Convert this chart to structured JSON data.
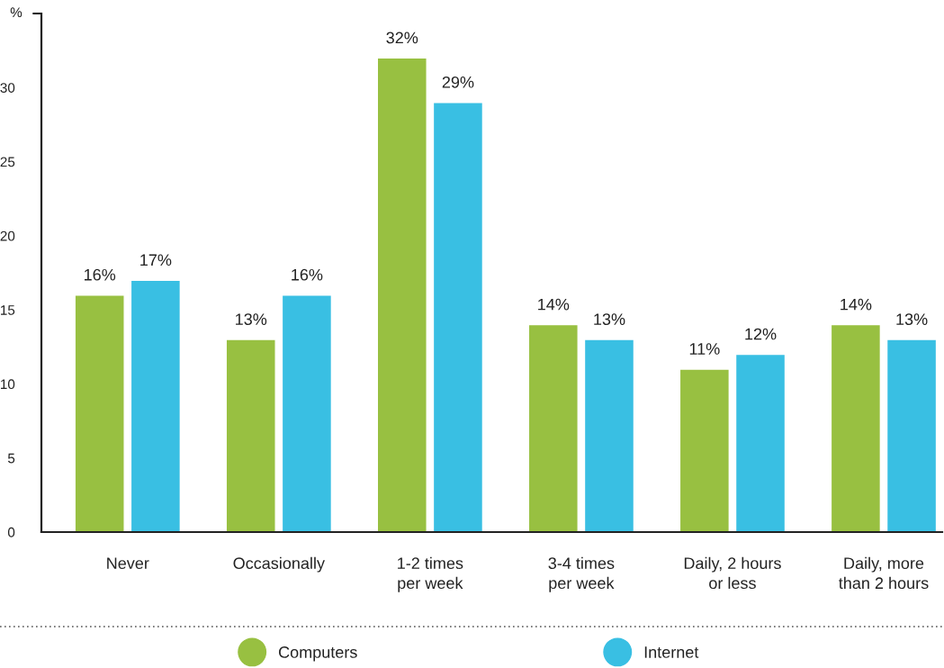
{
  "chart_data": {
    "type": "bar",
    "ylabel": "%",
    "categories": [
      "Never",
      "Occasionally",
      "1-2 times\nper week",
      "3-4 times\nper week",
      "Daily, 2 hours\nor less",
      "Daily, more\nthan 2 hours"
    ],
    "series": [
      {
        "name": "Computers",
        "color": "#98c041",
        "values": [
          16,
          13,
          32,
          14,
          11,
          14
        ],
        "value_labels": [
          "16%",
          "13%",
          "32%",
          "14%",
          "11%",
          "14%"
        ]
      },
      {
        "name": "Internet",
        "color": "#39bfe3",
        "values": [
          17,
          16,
          29,
          13,
          12,
          13
        ],
        "value_labels": [
          "17%",
          "16%",
          "29%",
          "13%",
          "12%",
          "13%"
        ]
      }
    ],
    "ylim": [
      0,
      35
    ],
    "yticks": [
      0,
      5,
      10,
      15,
      20,
      25,
      30,
      {
        "value": 35,
        "label": null
      }
    ],
    "legend": "bottom"
  }
}
